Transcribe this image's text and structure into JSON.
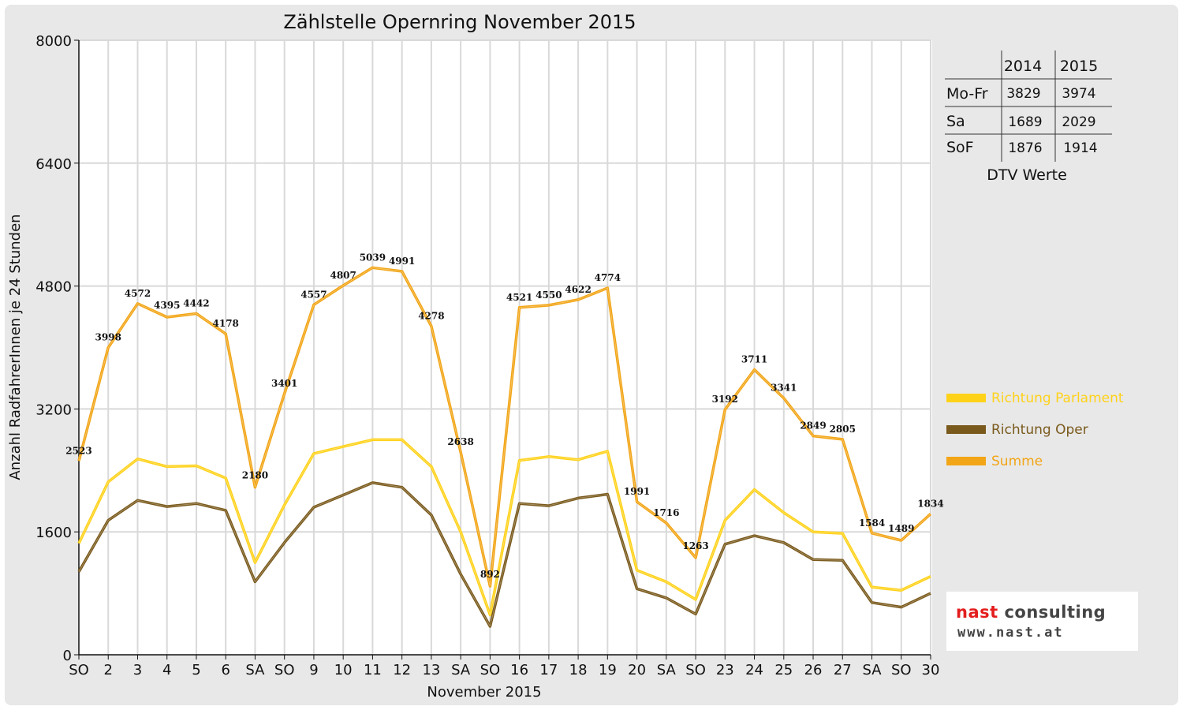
{
  "chart_data": {
    "type": "line",
    "title": "Zählstelle Opernring November 2015",
    "xlabel": "November 2015",
    "ylabel": "Anzahl RadfahrerInnen je 24 Stunden",
    "ylim": [
      0,
      8000
    ],
    "yticks": [
      "0",
      "1600",
      "3200",
      "4800",
      "6400",
      "8000"
    ],
    "grid": true,
    "legend_position": "right",
    "categories": [
      "SO",
      "2",
      "3",
      "4",
      "5",
      "6",
      "SA",
      "SO",
      "9",
      "10",
      "11",
      "12",
      "13",
      "SA",
      "SO",
      "16",
      "17",
      "18",
      "19",
      "20",
      "SA",
      "SO",
      "23",
      "24",
      "25",
      "26",
      "27",
      "SA",
      "SO",
      "30"
    ],
    "weekend_color": "#ff0000",
    "series": [
      {
        "name": "Richtung Parlament",
        "color": "#ffd21a",
        "values": [
          1450,
          2250,
          2550,
          2450,
          2460,
          2300,
          1200,
          1950,
          2620,
          2710,
          2800,
          2800,
          2450,
          1600,
          520,
          2530,
          2580,
          2540,
          2650,
          1100,
          950,
          720,
          1750,
          2150,
          1850,
          1600,
          1580,
          880,
          840,
          1020
        ]
      },
      {
        "name": "Richtung Oper",
        "color": "#7a5a1c",
        "values": [
          1080,
          1750,
          2010,
          1930,
          1970,
          1880,
          950,
          1460,
          1920,
          2080,
          2240,
          2180,
          1820,
          1050,
          370,
          1970,
          1940,
          2040,
          2090,
          860,
          740,
          530,
          1440,
          1550,
          1460,
          1240,
          1230,
          680,
          620,
          800
        ]
      },
      {
        "name": "Summe",
        "color": "#f2a516",
        "values": [
          2523,
          3998,
          4572,
          4395,
          4442,
          4178,
          2180,
          3401,
          4557,
          4807,
          5039,
          4991,
          4278,
          2638,
          892,
          4521,
          4550,
          4622,
          4774,
          1991,
          1716,
          1263,
          3192,
          3711,
          3341,
          2849,
          2805,
          1584,
          1489,
          1834
        ]
      }
    ],
    "data_labels": [
      "2523",
      "3998",
      "4572",
      "4395",
      "4442",
      "4178",
      "2180",
      "3401",
      "4557",
      "4807",
      "5039",
      "4991",
      "4278",
      "2638",
      "892",
      "4521",
      "4550",
      "4622",
      "4774",
      "1991",
      "1716",
      "1263",
      "3192",
      "3711",
      "3341",
      "2849",
      "2805",
      "1584",
      "1489",
      "1834"
    ]
  },
  "dtv_table": {
    "headers": [
      "",
      "2014",
      "2015"
    ],
    "rows": [
      {
        "label": "Mo-Fr",
        "v2014": "3829",
        "v2015": "3974"
      },
      {
        "label": "Sa",
        "v2014": "1689",
        "v2015": "2029"
      },
      {
        "label": "SoF",
        "v2014": "1876",
        "v2015": "1914"
      }
    ],
    "caption": "DTV Werte"
  },
  "logo": {
    "line1_a": "nast",
    "line1_b": " consulting",
    "line2": "www.nast.at"
  }
}
